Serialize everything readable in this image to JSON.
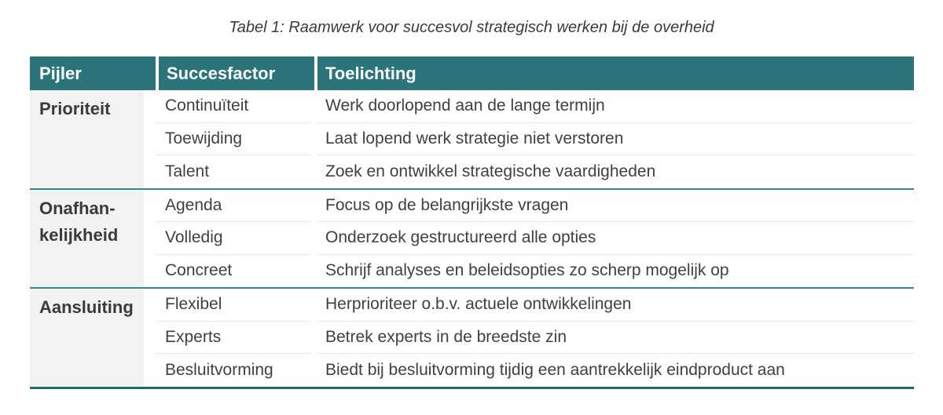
{
  "title": "Tabel 1: Raamwerk voor succesvol strategisch werken bij de overheid",
  "table": {
    "headers": [
      "Pijler",
      "Succesfactor",
      "Toelichting"
    ],
    "groups": [
      {
        "pillar": "Prioriteit",
        "rows": [
          {
            "factor": "Continuïteit",
            "toelichting": "Werk doorlopend aan de lange termijn"
          },
          {
            "factor": "Toewijding",
            "toelichting": "Laat lopend werk strategie niet verstoren"
          },
          {
            "factor": "Talent",
            "toelichting": "Zoek en ontwikkel strategische vaardigheden"
          }
        ]
      },
      {
        "pillar": "Onafhan-\nkelijkheid",
        "rows": [
          {
            "factor": "Agenda",
            "toelichting": "Focus op de belangrijkste vragen"
          },
          {
            "factor": "Volledig",
            "toelichting": "Onderzoek gestructureerd alle opties"
          },
          {
            "factor": "Concreet",
            "toelichting": "Schrijf analyses en beleidsopties zo scherp mogelijk op"
          }
        ]
      },
      {
        "pillar": "Aansluiting",
        "rows": [
          {
            "factor": "Flexibel",
            "toelichting": "Herprioriteer o.b.v. actuele ontwikkelingen"
          },
          {
            "factor": "Experts",
            "toelichting": "Betrek experts in de breedste zin"
          },
          {
            "factor": "Besluitvorming",
            "toelichting": "Biedt bij besluitvorming tijdig een aantrekkelijk eindproduct aan"
          }
        ]
      }
    ]
  },
  "colors": {
    "header_bg": "#2a747a",
    "header_text": "#ffffff",
    "pillar_bg": "#f2f2f2",
    "row_divider": "#e7e7e7",
    "group_divider": "#3e858b",
    "bottom_border": "#22686d",
    "body_text": "#404040",
    "title_text": "#3a3a3a"
  }
}
